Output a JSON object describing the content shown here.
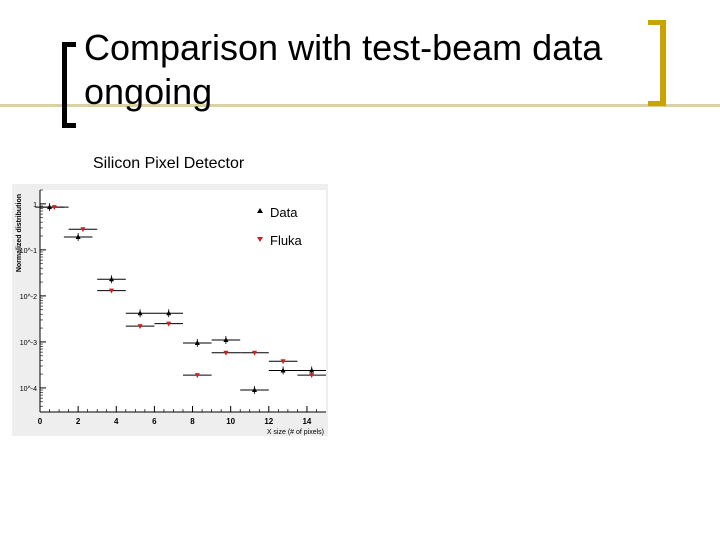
{
  "slide": {
    "title": "Comparison with test-beam data ongoing",
    "subtitle": "Silicon Pixel Detector"
  },
  "colors": {
    "accent_bar": "#d8d2a0",
    "right_bracket": "#c8a400",
    "data_marker": "#000000",
    "fluka_marker": "#cc2222"
  },
  "chart_data": {
    "type": "scatter",
    "title": "",
    "xlabel": "X size (# of pixels)",
    "ylabel": "Normalized distribution",
    "xlim": [
      0,
      15
    ],
    "ylim": [
      3e-05,
      2
    ],
    "yscale": "log",
    "x_ticks": [
      "0",
      "2",
      "4",
      "6",
      "8",
      "10",
      "12",
      "14"
    ],
    "y_ticks": [
      "1",
      "10^-1",
      "10^-2",
      "10^-3",
      "10^-4"
    ],
    "grid": false,
    "legend": "top-right",
    "series": [
      {
        "name": "Data",
        "marker": "triangle-up",
        "points": [
          {
            "x": 0.5,
            "y": 0.85
          },
          {
            "x": 2.0,
            "y": 0.19
          },
          {
            "x": 3.75,
            "y": 0.023
          },
          {
            "x": 5.25,
            "y": 0.0042
          },
          {
            "x": 6.75,
            "y": 0.0042
          },
          {
            "x": 8.25,
            "y": 0.00095
          },
          {
            "x": 9.75,
            "y": 0.0011
          },
          {
            "x": 11.25,
            "y": 9e-05
          },
          {
            "x": 12.75,
            "y": 0.00024
          },
          {
            "x": 14.25,
            "y": 0.00024
          }
        ]
      },
      {
        "name": "Fluka",
        "marker": "triangle-down",
        "points": [
          {
            "x": 0.75,
            "y": 0.85
          },
          {
            "x": 2.25,
            "y": 0.28
          },
          {
            "x": 3.75,
            "y": 0.013
          },
          {
            "x": 5.25,
            "y": 0.0022
          },
          {
            "x": 6.75,
            "y": 0.0025
          },
          {
            "x": 8.25,
            "y": 0.00019
          },
          {
            "x": 9.75,
            "y": 0.00058
          },
          {
            "x": 11.25,
            "y": 0.00058
          },
          {
            "x": 12.75,
            "y": 0.00038
          },
          {
            "x": 14.25,
            "y": 0.00019
          }
        ]
      }
    ]
  }
}
